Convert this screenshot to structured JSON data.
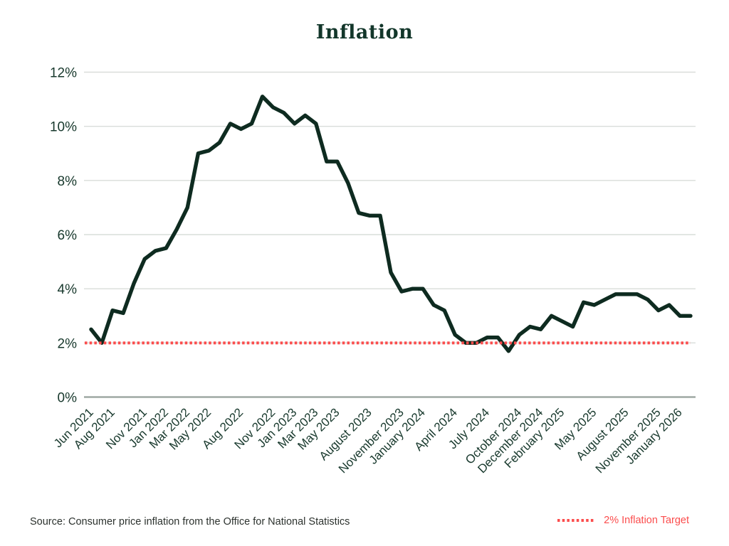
{
  "title": "Inflation",
  "source_note": "Source: Consumer price inflation from the Office for National Statistics",
  "legend": {
    "label": "2% Inflation Target"
  },
  "chart_data": {
    "type": "line",
    "title": "Inflation",
    "xlabel": "",
    "ylabel": "",
    "ylim": [
      0,
      12
    ],
    "grid": true,
    "legend_position": "bottom-right",
    "colors": {
      "line": "#0e2b20",
      "target": "#fb4d4d",
      "grid": "#d9ddda",
      "axis": "#9fa8a3",
      "label": "#17382c"
    },
    "y_ticks": [
      0,
      2,
      4,
      6,
      8,
      10,
      12
    ],
    "y_tick_labels": [
      "0%",
      "2%",
      "4%",
      "6%",
      "8%",
      "10%",
      "12%"
    ],
    "x_ticks": [
      {
        "label": "Jun 2021",
        "month_index": 0
      },
      {
        "label": "Aug 2021",
        "month_index": 2
      },
      {
        "label": "Nov 2021",
        "month_index": 5
      },
      {
        "label": "Jan 2022",
        "month_index": 7
      },
      {
        "label": "Mar 2022",
        "month_index": 9
      },
      {
        "label": "May 2022",
        "month_index": 11
      },
      {
        "label": "Aug 2022",
        "month_index": 14
      },
      {
        "label": "Nov 2022",
        "month_index": 17
      },
      {
        "label": "Jan 2023",
        "month_index": 19
      },
      {
        "label": "Mar 2023",
        "month_index": 21
      },
      {
        "label": "May 2023",
        "month_index": 23
      },
      {
        "label": "August 2023",
        "month_index": 26
      },
      {
        "label": "November 2023",
        "month_index": 29
      },
      {
        "label": "January 2024",
        "month_index": 31
      },
      {
        "label": "April 2024",
        "month_index": 34
      },
      {
        "label": "July 2024",
        "month_index": 37
      },
      {
        "label": "October 2024",
        "month_index": 40
      },
      {
        "label": "December 2024",
        "month_index": 42
      },
      {
        "label": "February 2025",
        "month_index": 44
      },
      {
        "label": "May 2025",
        "month_index": 47
      },
      {
        "label": "August 2025",
        "month_index": 50
      },
      {
        "label": "November 2025",
        "month_index": 53
      },
      {
        "label": "January 2026",
        "month_index": 55
      }
    ],
    "months": [
      "Jun 2021",
      "Jul 2021",
      "Aug 2021",
      "Sep 2021",
      "Oct 2021",
      "Nov 2021",
      "Dec 2021",
      "Jan 2022",
      "Feb 2022",
      "Mar 2022",
      "Apr 2022",
      "May 2022",
      "Jun 2022",
      "Jul 2022",
      "Aug 2022",
      "Sep 2022",
      "Oct 2022",
      "Nov 2022",
      "Dec 2022",
      "Jan 2023",
      "Feb 2023",
      "Mar 2023",
      "Apr 2023",
      "May 2023",
      "Jun 2023",
      "Jul 2023",
      "Aug 2023",
      "Sep 2023",
      "Oct 2023",
      "Nov 2023",
      "Dec 2023",
      "Jan 2024",
      "Feb 2024",
      "Mar 2024",
      "Apr 2024",
      "May 2024",
      "Jun 2024",
      "Jul 2024",
      "Aug 2024",
      "Sep 2024",
      "Oct 2024",
      "Nov 2024",
      "Dec 2024",
      "Jan 2025",
      "Feb 2025",
      "Mar 2025",
      "Apr 2025",
      "May 2025",
      "Jun 2025",
      "Jul 2025",
      "Aug 2025",
      "Sep 2025",
      "Oct 2025",
      "Nov 2025",
      "Dec 2025",
      "Jan 2026"
    ],
    "values": [
      2.5,
      2.0,
      3.2,
      3.1,
      4.2,
      5.1,
      5.4,
      5.5,
      6.2,
      7.0,
      9.0,
      9.1,
      9.4,
      10.1,
      9.9,
      10.1,
      11.1,
      10.7,
      10.5,
      10.1,
      10.4,
      10.1,
      8.7,
      8.7,
      7.9,
      6.8,
      6.7,
      6.7,
      4.6,
      3.9,
      4.0,
      4.0,
      3.4,
      3.2,
      2.3,
      2.0,
      2.0,
      2.2,
      2.2,
      1.7,
      2.3,
      2.6,
      2.5,
      3.0,
      2.8,
      2.6,
      3.5,
      3.4,
      3.6,
      3.8,
      3.8,
      3.8,
      3.6,
      3.2,
      3.4,
      3.0
    ],
    "target_line": {
      "value": 2,
      "label": "2% Inflation Target",
      "style": "dotted"
    }
  }
}
